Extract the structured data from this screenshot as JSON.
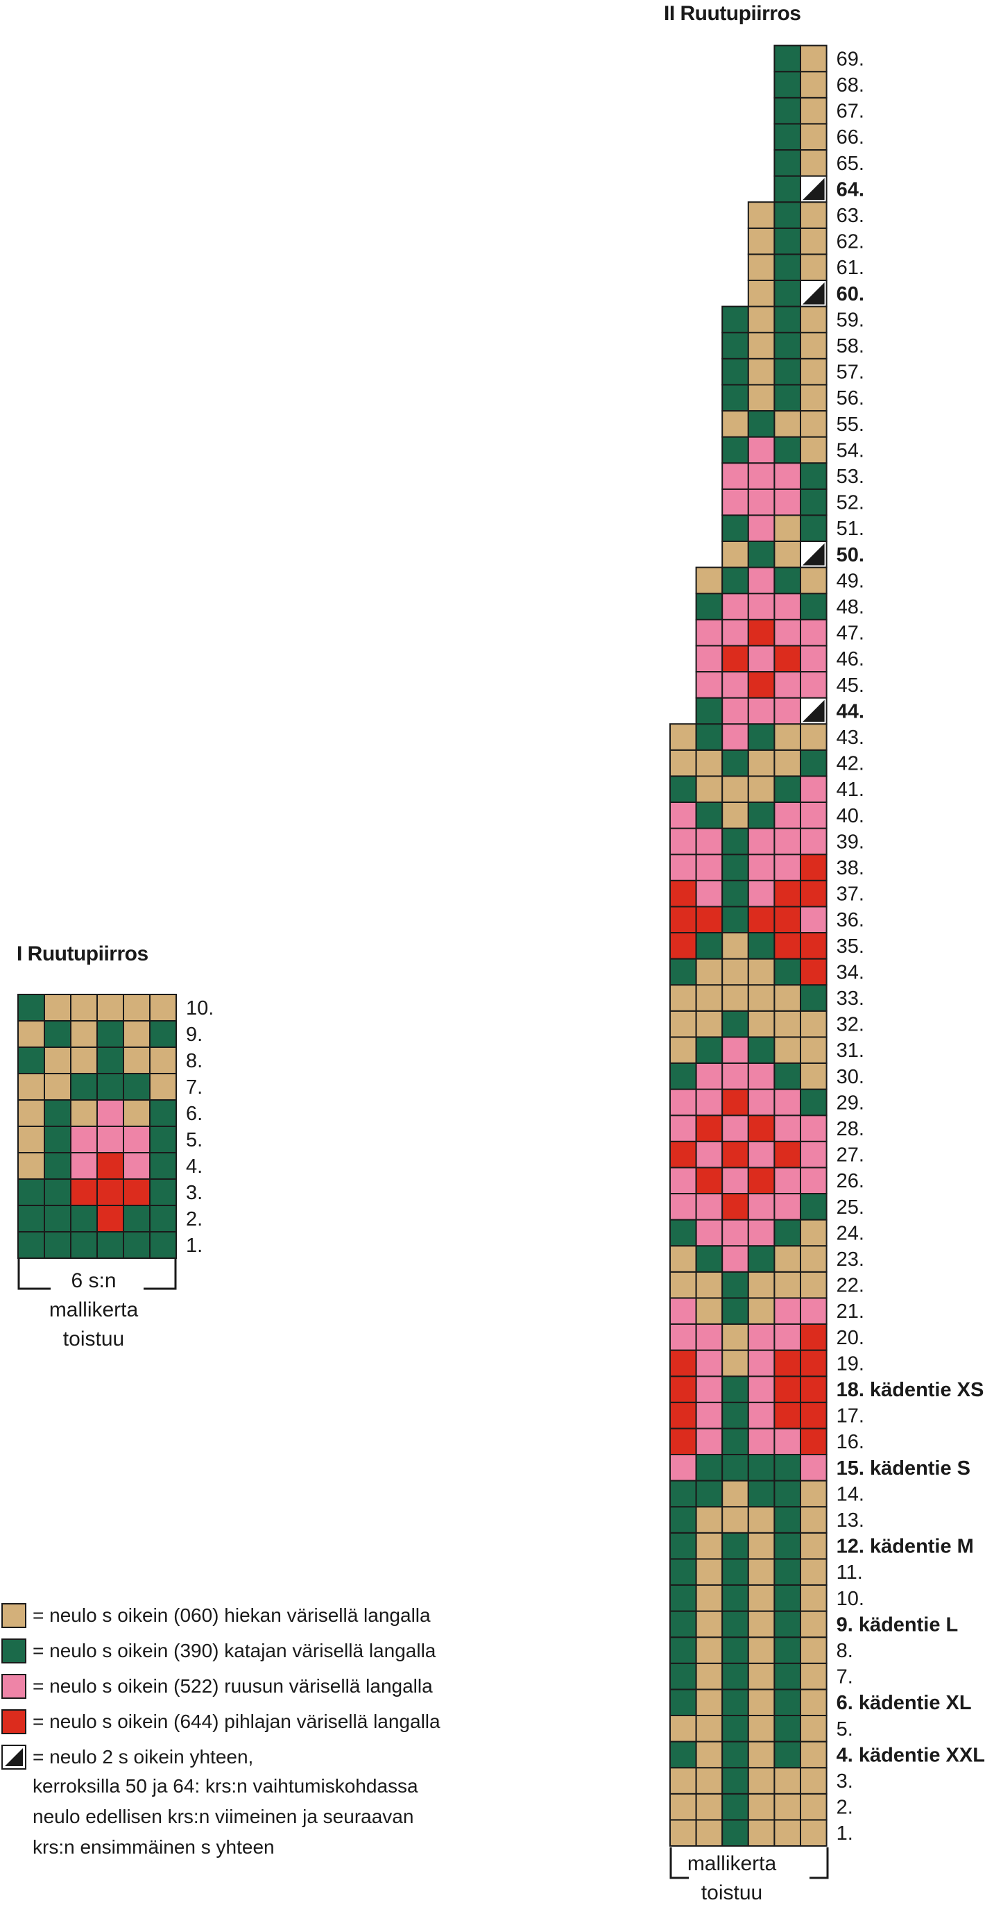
{
  "colors": {
    "T": "#d3b07a",
    "G": "#1b6a4a",
    "P": "#ee84a7",
    "R": "#dc2c1d",
    "grid": "#1a1a1a",
    "decrease_fill": "#1a1a1a"
  },
  "chart1": {
    "title": "I Ruutupiirros",
    "caption": [
      "6 s:n",
      "mallikerta",
      "toistuu"
    ],
    "rows": [
      {
        "label": "1.",
        "bold": false,
        "cells": "GGGGGG"
      },
      {
        "label": "2.",
        "bold": false,
        "cells": "GGGRGG"
      },
      {
        "label": "3.",
        "bold": false,
        "cells": "GGRRRG"
      },
      {
        "label": "4.",
        "bold": false,
        "cells": "TGPRPG"
      },
      {
        "label": "5.",
        "bold": false,
        "cells": "TGPPPG"
      },
      {
        "label": "6.",
        "bold": false,
        "cells": "TGTPTG"
      },
      {
        "label": "7.",
        "bold": false,
        "cells": "TTGGGT"
      },
      {
        "label": "8.",
        "bold": false,
        "cells": "GTTGTT"
      },
      {
        "label": "9.",
        "bold": false,
        "cells": "TGTGTG"
      },
      {
        "label": "10.",
        "bold": false,
        "cells": "GTTTTT"
      }
    ]
  },
  "chart2": {
    "title": "II Ruutupiirros",
    "caption": [
      "mallikerta",
      "toistuu"
    ],
    "rows": [
      {
        "label": "1.",
        "bold": false,
        "cells": "TTGTTT"
      },
      {
        "label": "2.",
        "bold": false,
        "cells": "TTGTTT"
      },
      {
        "label": "3.",
        "bold": false,
        "cells": "TTGTTT"
      },
      {
        "label": "4. kädentie XXL",
        "bold": true,
        "cells": "GTGTGT"
      },
      {
        "label": "5.",
        "bold": false,
        "cells": "TTGTGT"
      },
      {
        "label": "6. kädentie XL",
        "bold": true,
        "cells": "GTGTGT"
      },
      {
        "label": "7.",
        "bold": false,
        "cells": "GTGTGT"
      },
      {
        "label": "8.",
        "bold": false,
        "cells": "GTGTGT"
      },
      {
        "label": "9. kädentie L",
        "bold": true,
        "cells": "GTGTGT"
      },
      {
        "label": "10.",
        "bold": false,
        "cells": "GTGTGT"
      },
      {
        "label": "11.",
        "bold": false,
        "cells": "GTGTGT"
      },
      {
        "label": "12. kädentie M",
        "bold": true,
        "cells": "GTGTGT"
      },
      {
        "label": "13.",
        "bold": false,
        "cells": "GTTTGT"
      },
      {
        "label": "14.",
        "bold": false,
        "cells": "GGTGGT"
      },
      {
        "label": "15. kädentie S",
        "bold": true,
        "cells": "PGGGGP"
      },
      {
        "label": "16.",
        "bold": false,
        "cells": "RPGPPR"
      },
      {
        "label": "17.",
        "bold": false,
        "cells": "RPGPRR"
      },
      {
        "label": "18. kädentie XS",
        "bold": true,
        "cells": "RPGPRR"
      },
      {
        "label": "19.",
        "bold": false,
        "cells": "RPTPRR"
      },
      {
        "label": "20.",
        "bold": false,
        "cells": "PPTPPR"
      },
      {
        "label": "21.",
        "bold": false,
        "cells": "PTGTPP"
      },
      {
        "label": "22.",
        "bold": false,
        "cells": "TTGTTT"
      },
      {
        "label": "23.",
        "bold": false,
        "cells": "TGPGTT"
      },
      {
        "label": "24.",
        "bold": false,
        "cells": "GPPPGT"
      },
      {
        "label": "25.",
        "bold": false,
        "cells": "PPRPPG"
      },
      {
        "label": "26.",
        "bold": false,
        "cells": "PRPRPP"
      },
      {
        "label": "27.",
        "bold": false,
        "cells": "RPRPRP"
      },
      {
        "label": "28.",
        "bold": false,
        "cells": "PRPRPP"
      },
      {
        "label": "29.",
        "bold": false,
        "cells": "PPRPPG"
      },
      {
        "label": "30.",
        "bold": false,
        "cells": "GPPPGT"
      },
      {
        "label": "31.",
        "bold": false,
        "cells": "TGPGTT"
      },
      {
        "label": "32.",
        "bold": false,
        "cells": "TTGTTT"
      },
      {
        "label": "33.",
        "bold": false,
        "cells": "TTTTTG"
      },
      {
        "label": "34.",
        "bold": false,
        "cells": "GTTTGR"
      },
      {
        "label": "35.",
        "bold": false,
        "cells": "RGTGRR"
      },
      {
        "label": "36.",
        "bold": false,
        "cells": "RRGRRP"
      },
      {
        "label": "37.",
        "bold": false,
        "cells": "RPGPRR"
      },
      {
        "label": "38.",
        "bold": false,
        "cells": "PPGPPR"
      },
      {
        "label": "39.",
        "bold": false,
        "cells": "PPGPPP"
      },
      {
        "label": "40.",
        "bold": false,
        "cells": "PGTGPP"
      },
      {
        "label": "41.",
        "bold": false,
        "cells": "GTTTGP"
      },
      {
        "label": "42.",
        "bold": false,
        "cells": "TTGTTG"
      },
      {
        "label": "43.",
        "bold": false,
        "cells": "TGPGTT"
      },
      {
        "label": "44.",
        "bold": true,
        "cells": "GPPPD"
      },
      {
        "label": "45.",
        "bold": false,
        "cells": "PPRPP"
      },
      {
        "label": "46.",
        "bold": false,
        "cells": "PRPRP"
      },
      {
        "label": "47.",
        "bold": false,
        "cells": "PPRPP"
      },
      {
        "label": "48.",
        "bold": false,
        "cells": "GPPPG"
      },
      {
        "label": "49.",
        "bold": false,
        "cells": "TGPGT"
      },
      {
        "label": "50.",
        "bold": true,
        "cells": "TGTD"
      },
      {
        "label": "51.",
        "bold": false,
        "cells": "GPTG"
      },
      {
        "label": "52.",
        "bold": false,
        "cells": "PPPG"
      },
      {
        "label": "53.",
        "bold": false,
        "cells": "PPPG"
      },
      {
        "label": "54.",
        "bold": false,
        "cells": "GPGT"
      },
      {
        "label": "55.",
        "bold": false,
        "cells": "TGTT"
      },
      {
        "label": "56.",
        "bold": false,
        "cells": "GTGT"
      },
      {
        "label": "57.",
        "bold": false,
        "cells": "GTGT"
      },
      {
        "label": "58.",
        "bold": false,
        "cells": "GTGT"
      },
      {
        "label": "59.",
        "bold": false,
        "cells": "GTGT"
      },
      {
        "label": "60.",
        "bold": true,
        "cells": "TGD"
      },
      {
        "label": "61.",
        "bold": false,
        "cells": "TGT"
      },
      {
        "label": "62.",
        "bold": false,
        "cells": "TGT"
      },
      {
        "label": "63.",
        "bold": false,
        "cells": "TGT"
      },
      {
        "label": "64.",
        "bold": true,
        "cells": "GD"
      },
      {
        "label": "65.",
        "bold": false,
        "cells": "GT"
      },
      {
        "label": "66.",
        "bold": false,
        "cells": "GT"
      },
      {
        "label": "67.",
        "bold": false,
        "cells": "GT"
      },
      {
        "label": "68.",
        "bold": false,
        "cells": "GT"
      },
      {
        "label": "69.",
        "bold": false,
        "cells": "GT"
      }
    ]
  },
  "legend": {
    "items": [
      {
        "color": "T",
        "text": "= neulo s oikein (060) hiekan värisellä langalla"
      },
      {
        "color": "G",
        "text": "= neulo s oikein (390) katajan värisellä langalla"
      },
      {
        "color": "P",
        "text": "= neulo s oikein (522) ruusun värisellä langalla"
      },
      {
        "color": "R",
        "text": "= neulo s oikein (644) pihlajan värisellä langalla"
      },
      {
        "color": "D",
        "text": "= neulo 2 s oikein yhteen,"
      }
    ],
    "note": [
      "kerroksilla 50 ja 64: krs:n vaihtumiskohdassa",
      "neulo edellisen krs:n viimeinen ja seuraavan",
      "krs:n ensimmäinen s yhteen"
    ]
  }
}
